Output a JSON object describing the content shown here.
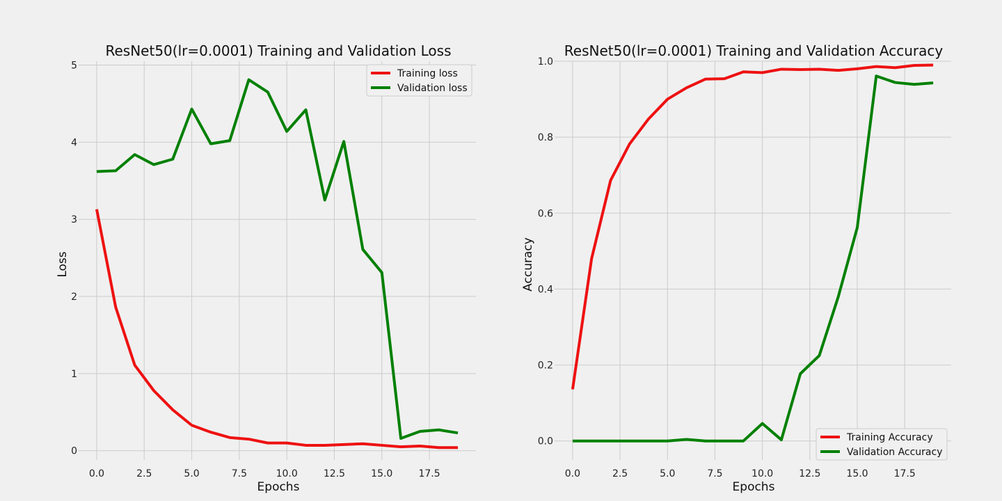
{
  "chart_data": [
    {
      "type": "line",
      "title": "ResNet50(lr=0.0001) Training and Validation Loss",
      "xlabel": "Epochs",
      "ylabel": "Loss",
      "x": [
        0,
        1,
        2,
        3,
        4,
        5,
        6,
        7,
        8,
        9,
        10,
        11,
        12,
        13,
        14,
        15,
        16,
        17,
        18,
        19
      ],
      "xlim": [
        -0.95,
        19.95
      ],
      "ylim": [
        -0.12,
        5.05
      ],
      "xticks": [
        0,
        2.5,
        5,
        7.5,
        10,
        12.5,
        15,
        17.5
      ],
      "xtick_labels": [
        "0.0",
        "2.5",
        "5.0",
        "7.5",
        "10.0",
        "12.5",
        "15.0",
        "17.5"
      ],
      "yticks": [
        0,
        1,
        2,
        3,
        4,
        5
      ],
      "ytick_labels": [
        "0",
        "1",
        "2",
        "3",
        "4",
        "5"
      ],
      "grid": true,
      "legend_position": "top-right",
      "series": [
        {
          "name": "Training loss",
          "color": "#ee1111",
          "values": [
            3.13,
            1.86,
            1.11,
            0.78,
            0.53,
            0.33,
            0.24,
            0.17,
            0.15,
            0.1,
            0.1,
            0.07,
            0.07,
            0.08,
            0.09,
            0.07,
            0.05,
            0.06,
            0.04,
            0.04
          ]
        },
        {
          "name": "Validation loss",
          "color": "#008000",
          "values": [
            3.62,
            3.63,
            3.84,
            3.71,
            3.78,
            4.43,
            3.98,
            4.02,
            4.81,
            4.65,
            4.14,
            4.42,
            3.25,
            4.01,
            2.61,
            2.31,
            0.16,
            0.25,
            0.27,
            0.23
          ]
        }
      ]
    },
    {
      "type": "line",
      "title": "ResNet50(lr=0.0001) Training and Validation Accuracy",
      "xlabel": "Epochs",
      "ylabel": "Accuracy",
      "x": [
        0,
        1,
        2,
        3,
        4,
        5,
        6,
        7,
        8,
        9,
        10,
        11,
        12,
        13,
        14,
        15,
        16,
        17,
        18,
        19
      ],
      "xlim": [
        -0.95,
        19.95
      ],
      "ylim": [
        -0.05,
        1.0
      ],
      "xticks": [
        0,
        2.5,
        5,
        7.5,
        10,
        12.5,
        15,
        17.5
      ],
      "xtick_labels": [
        "0.0",
        "2.5",
        "5.0",
        "7.5",
        "10.0",
        "12.5",
        "15.0",
        "17.5"
      ],
      "yticks": [
        0,
        0.2,
        0.4,
        0.6,
        0.8,
        1.0
      ],
      "ytick_labels": [
        "0.0",
        "0.2",
        "0.4",
        "0.6",
        "0.8",
        "1.0"
      ],
      "grid": true,
      "legend_position": "bottom-right",
      "series": [
        {
          "name": "Training Accuracy",
          "color": "#ee1111",
          "values": [
            0.136,
            0.48,
            0.686,
            0.782,
            0.848,
            0.9,
            0.93,
            0.953,
            0.954,
            0.972,
            0.97,
            0.979,
            0.978,
            0.979,
            0.976,
            0.98,
            0.986,
            0.983,
            0.989,
            0.99
          ]
        },
        {
          "name": "Validation Accuracy",
          "color": "#008000",
          "values": [
            0,
            0,
            0,
            0,
            0,
            0,
            0.004,
            0,
            0,
            0,
            0.046,
            0.003,
            0.177,
            0.225,
            0.38,
            0.562,
            0.961,
            0.944,
            0.939,
            0.943
          ]
        }
      ]
    }
  ]
}
